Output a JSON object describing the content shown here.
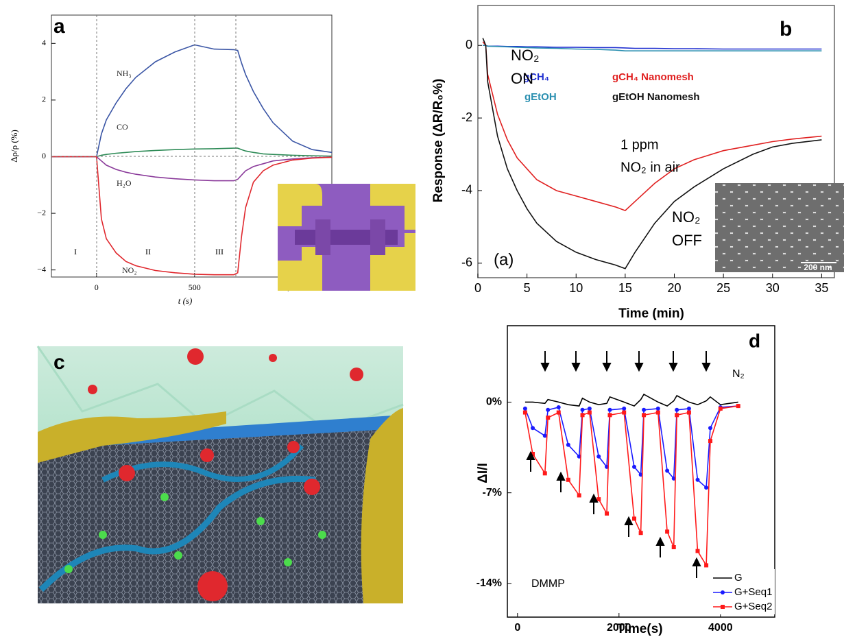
{
  "chart_data": [
    {
      "type": "line",
      "label": "a",
      "xlabel": "t (s)",
      "ylabel": "Δρ/ρ (%)",
      "x": [
        -230,
        -100,
        0,
        25,
        50,
        100,
        150,
        200,
        300,
        400,
        500,
        600,
        700,
        720,
        740,
        760,
        800,
        850,
        900,
        1000,
        1100,
        1200
      ],
      "series": [
        {
          "name": "NH₃",
          "color": "#3a55a5",
          "values": [
            0,
            0,
            0,
            0.8,
            1.3,
            1.9,
            2.4,
            2.8,
            3.35,
            3.7,
            3.95,
            3.8,
            3.78,
            3.75,
            3.3,
            2.9,
            2.3,
            1.7,
            1.2,
            0.55,
            0.25,
            0.15
          ]
        },
        {
          "name": "CO",
          "color": "#2e8b57",
          "values": [
            0,
            0,
            0,
            0.05,
            0.08,
            0.12,
            0.15,
            0.18,
            0.22,
            0.25,
            0.27,
            0.28,
            0.3,
            0.3,
            0.25,
            0.2,
            0.15,
            0.1,
            0.08,
            0.05,
            0.03,
            0.02
          ]
        },
        {
          "name": "H₂O",
          "color": "#8a3a9a",
          "values": [
            0,
            0,
            0,
            -0.15,
            -0.3,
            -0.45,
            -0.55,
            -0.62,
            -0.72,
            -0.78,
            -0.82,
            -0.85,
            -0.85,
            -0.8,
            -0.65,
            -0.5,
            -0.35,
            -0.25,
            -0.15,
            -0.08,
            -0.04,
            -0.02
          ]
        },
        {
          "name": "NO₂",
          "color": "#e0282e",
          "values": [
            0,
            0,
            0,
            -2.2,
            -2.9,
            -3.4,
            -3.7,
            -3.85,
            -4.02,
            -4.1,
            -4.15,
            -4.17,
            -4.17,
            -4.1,
            -2.8,
            -1.8,
            -0.9,
            -0.5,
            -0.3,
            -0.12,
            -0.05,
            -0.02
          ]
        }
      ],
      "annotations": [
        "I",
        "II",
        "III"
      ],
      "legend": "inline",
      "xlim": [
        -230,
        1200
      ],
      "ylim": [
        -4.25,
        5
      ],
      "xticks": [
        0,
        500,
        {
          "value": 1000,
          "label": "1,000"
        }
      ],
      "yticks": [
        {
          "value": -4,
          "label": "−4"
        },
        {
          "value": -2,
          "label": "−2"
        },
        0,
        2,
        4
      ]
    },
    {
      "type": "line",
      "label": "b",
      "xlabel": "Time (min)",
      "ylabel": "Response (ΔR/R₀%)",
      "x": [
        0.5,
        0.8,
        1,
        2,
        3,
        4,
        5,
        6,
        8,
        10,
        12,
        14,
        15,
        16,
        18,
        20,
        22,
        25,
        28,
        30,
        32,
        35
      ],
      "series": [
        {
          "name": "gCH₄",
          "color": "#1f2fd0",
          "values": [
            0,
            0,
            -0.02,
            -0.02,
            -0.03,
            -0.03,
            -0.04,
            -0.04,
            -0.05,
            -0.05,
            -0.06,
            -0.06,
            -0.07,
            -0.08,
            -0.08,
            -0.09,
            -0.09,
            -0.1,
            -0.1,
            -0.1,
            -0.1,
            -0.1
          ]
        },
        {
          "name": "gEtOH",
          "color": "#2a8fb0",
          "values": [
            0,
            0,
            -0.02,
            -0.03,
            -0.04,
            -0.05,
            -0.06,
            -0.07,
            -0.08,
            -0.1,
            -0.11,
            -0.13,
            -0.15,
            -0.15,
            -0.15,
            -0.15,
            -0.15,
            -0.15,
            -0.15,
            -0.15,
            -0.15,
            -0.15
          ]
        },
        {
          "name": "gCH₄ Nanomesh",
          "color": "#e02020",
          "values": [
            0.1,
            0,
            -0.8,
            -1.9,
            -2.6,
            -3.1,
            -3.4,
            -3.7,
            -4.0,
            -4.15,
            -4.3,
            -4.45,
            -4.55,
            -4.3,
            -3.8,
            -3.4,
            -3.15,
            -2.9,
            -2.75,
            -2.65,
            -2.58,
            -2.5
          ]
        },
        {
          "name": "gEtOH Nanomesh",
          "color": "#111111",
          "values": [
            0.2,
            0,
            -1.0,
            -2.5,
            -3.4,
            -4.0,
            -4.5,
            -4.9,
            -5.4,
            -5.7,
            -5.9,
            -6.05,
            -6.15,
            -5.7,
            -4.9,
            -4.3,
            -3.9,
            -3.4,
            -3.0,
            -2.8,
            -2.7,
            -2.6
          ]
        }
      ],
      "annotations": [
        "NO₂",
        "ON",
        "1 ppm",
        "NO₂ in air",
        "NO₂",
        "OFF",
        "(a)",
        "200 nm"
      ],
      "legend": "upper right",
      "xlim": [
        0,
        36.3
      ],
      "ylim": [
        -6.4,
        1.1
      ],
      "xticks": [
        0,
        5,
        10,
        15,
        20,
        25,
        30,
        35
      ],
      "yticks": [
        -6,
        -4,
        -2,
        0
      ]
    },
    {
      "type": "line",
      "label": "d",
      "xlabel": "Time(s)",
      "ylabel": "ΔI/I",
      "x": [
        150,
        300,
        540,
        600,
        810,
        1000,
        1215,
        1280,
        1420,
        1600,
        1760,
        1820,
        2100,
        2300,
        2430,
        2490,
        2770,
        2950,
        3080,
        3140,
        3380,
        3550,
        3720,
        3800,
        4000,
        4350
      ],
      "series": [
        {
          "name": "G",
          "color": "#000000",
          "marker": "none",
          "values": [
            0,
            0,
            -0.1,
            0.2,
            0,
            -0.2,
            -0.3,
            0.3,
            0,
            -0.2,
            -0.1,
            0.4,
            0,
            -0.3,
            0.2,
            0.6,
            0,
            -0.3,
            0.1,
            0.5,
            0,
            -0.2,
            0.1,
            0.4,
            -0.2,
            0
          ]
        },
        {
          "name": "G+Seq1",
          "color": "#1a1aff",
          "marker": "circle",
          "values": [
            -0.5,
            -2,
            -2.6,
            -0.6,
            -0.4,
            -3.3,
            -4.2,
            -0.6,
            -0.5,
            -4.2,
            -5,
            -0.6,
            -0.5,
            -5,
            -5.6,
            -0.6,
            -0.5,
            -5.3,
            -5.9,
            -0.6,
            -0.5,
            -6,
            -6.6,
            -2,
            -0.4,
            -0.3
          ]
        },
        {
          "name": "G+Seq2",
          "color": "#ff1a1a",
          "marker": "square",
          "values": [
            -0.8,
            -4,
            -5.5,
            -1.2,
            -0.8,
            -6,
            -7.2,
            -1,
            -0.8,
            -7.5,
            -8.6,
            -1,
            -0.8,
            -9,
            -10.1,
            -1,
            -0.8,
            -10,
            -11.2,
            -1,
            -0.8,
            -11.5,
            -12.6,
            -3,
            -0.5,
            -0.3
          ]
        }
      ],
      "annotations": [
        "DMMP",
        "N₂"
      ],
      "legend": "lower right",
      "xlim": [
        -200,
        5070
      ],
      "ylim": [
        -16.6,
        5.9
      ],
      "xticks": [
        0,
        2000,
        4000
      ],
      "yticks": [
        {
          "value": -14,
          "label": "-14%"
        },
        {
          "value": -7,
          "label": "-7%"
        },
        {
          "value": 0,
          "label": "0%"
        }
      ]
    }
  ],
  "panel_c": {
    "label": "c"
  }
}
